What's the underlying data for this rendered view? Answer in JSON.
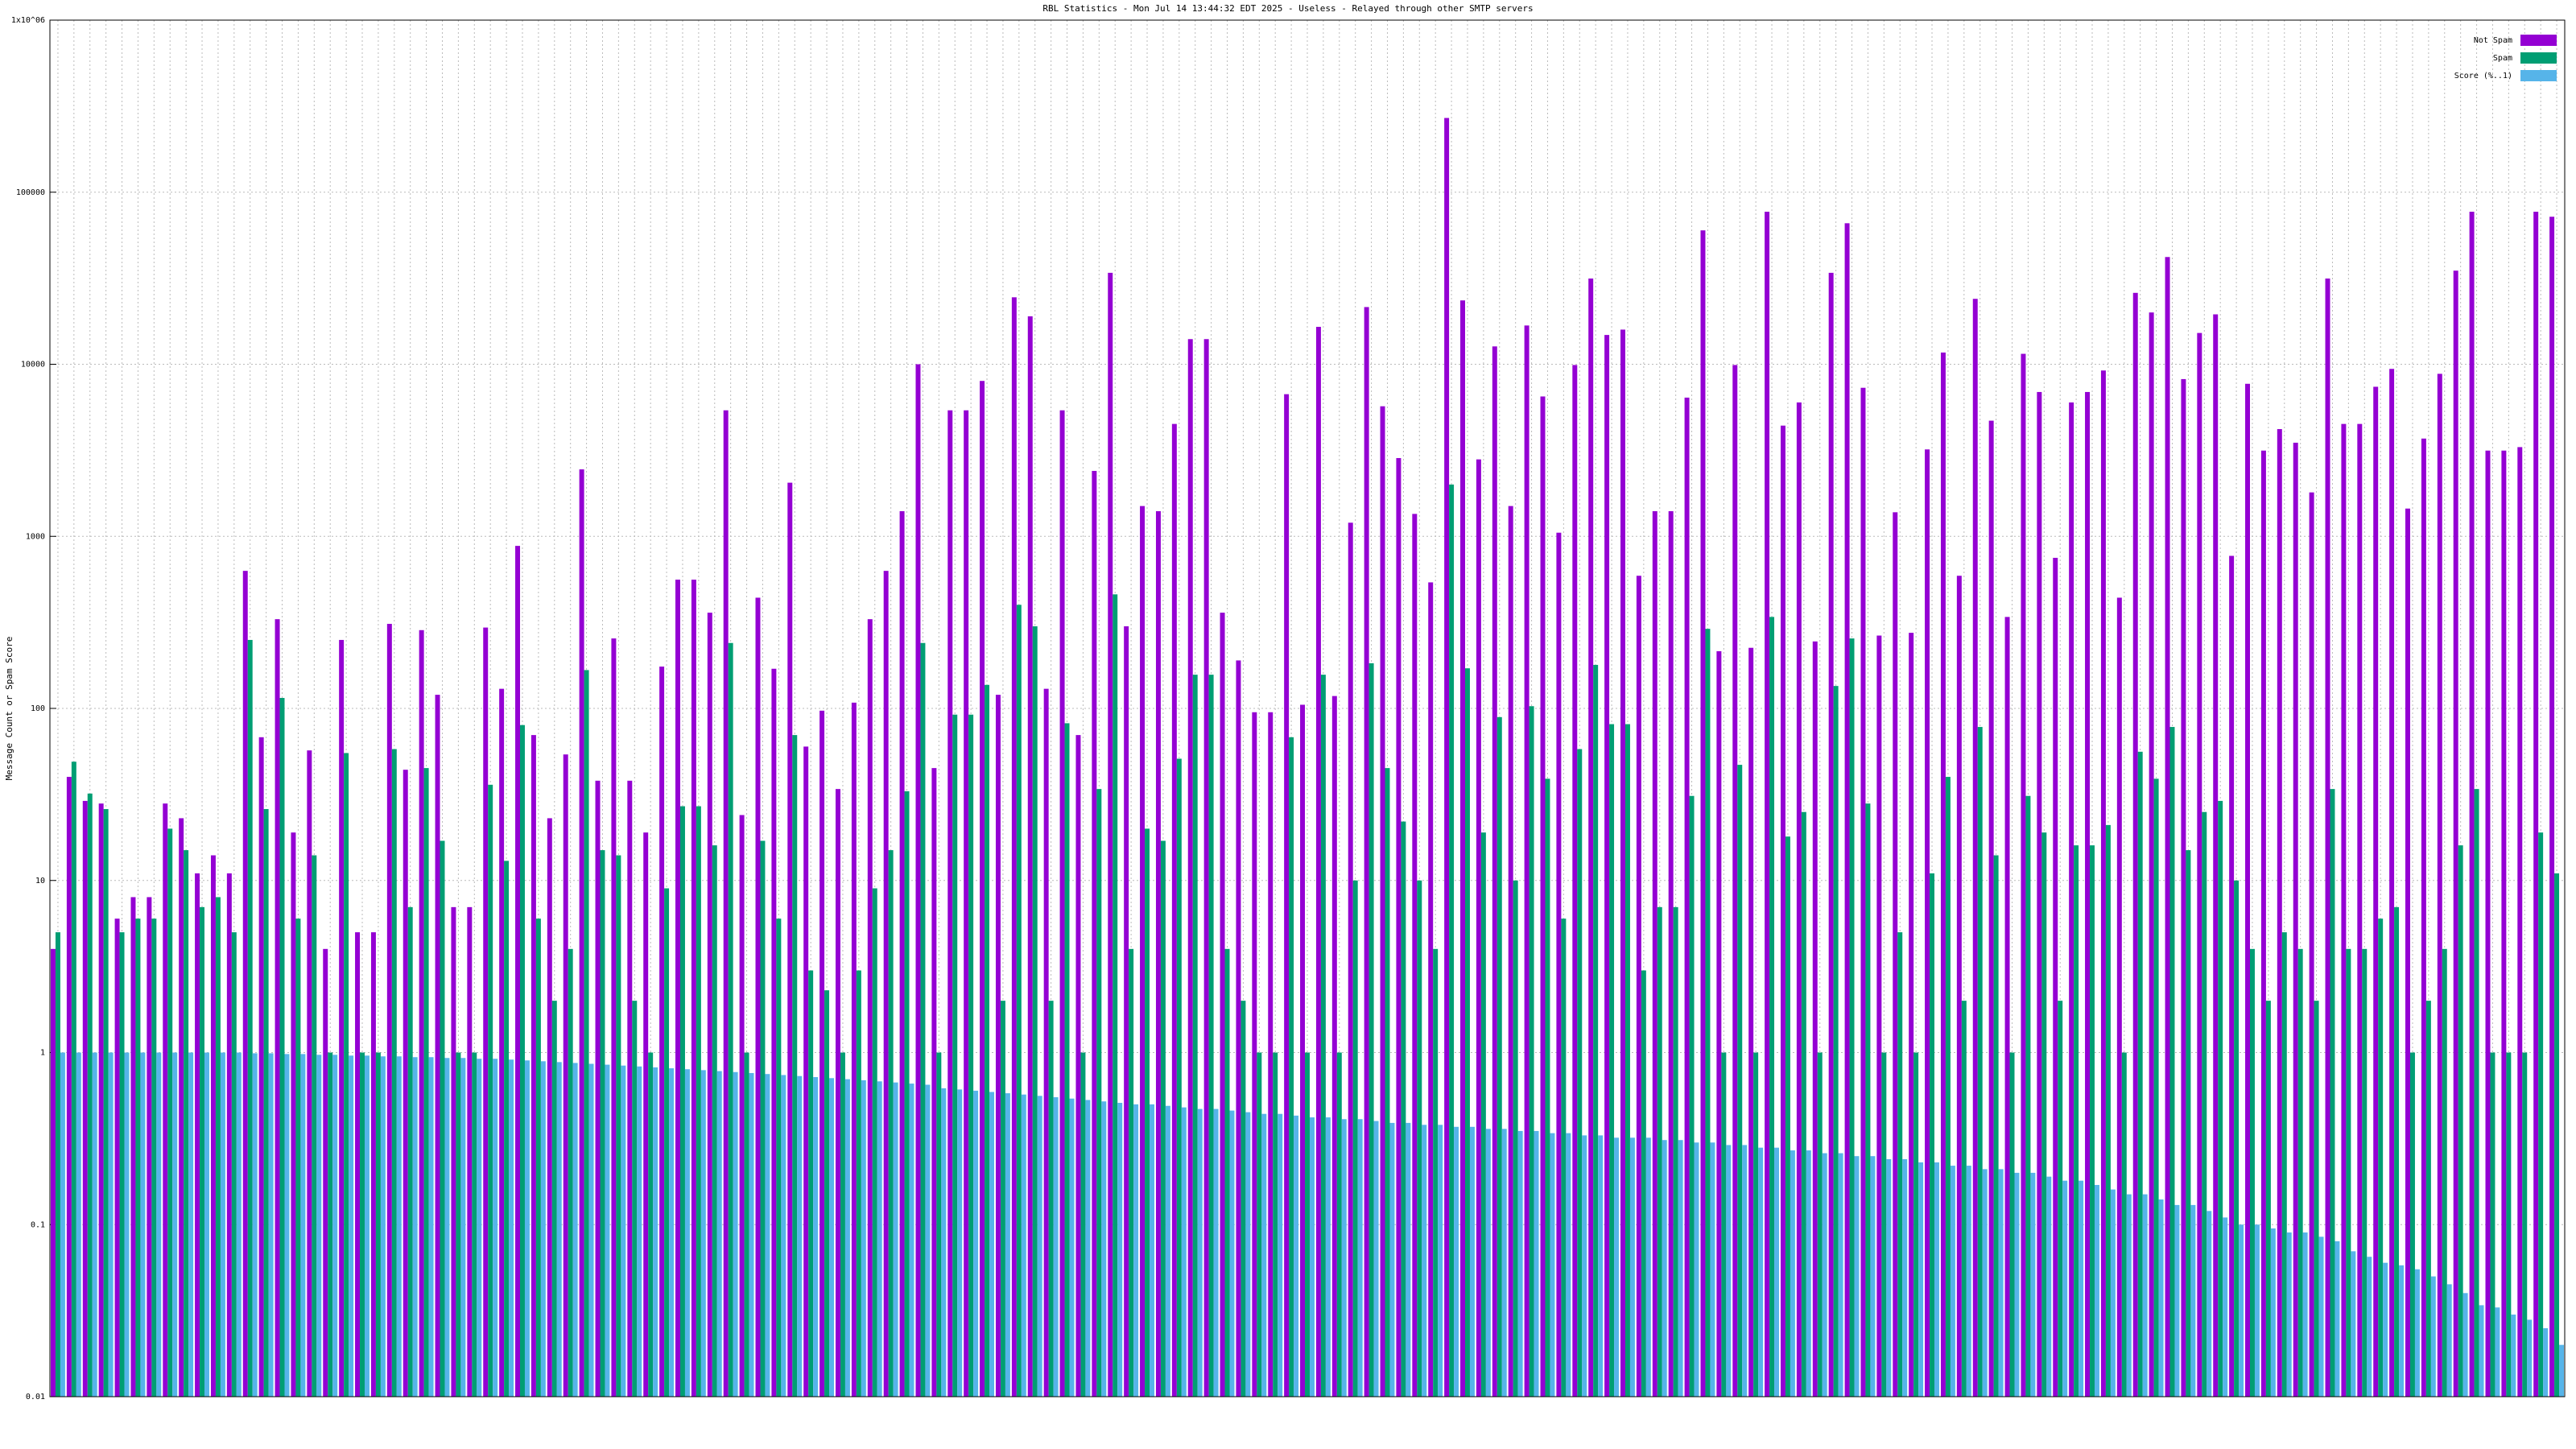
{
  "chart_data": {
    "type": "bar",
    "title": "RBL Statistics - Mon Jul 14 13:44:32 EDT 2025 - Useless - Relayed through other SMTP servers",
    "y_label": "Message Count or Spam Score",
    "log_scale": true,
    "grid": true,
    "legend": "top right",
    "categories": [
      null,
      null,
      null,
      null,
      null,
      null,
      null,
      null,
      null,
      null,
      null,
      null,
      null,
      null,
      null,
      null,
      null,
      null,
      null,
      null,
      null,
      null,
      null,
      null,
      null,
      null,
      null,
      null,
      null,
      null,
      null,
      null,
      null,
      null,
      null,
      null,
      null,
      null,
      null,
      null,
      null,
      null,
      null,
      null,
      null,
      null,
      null,
      null,
      null,
      null,
      null,
      null,
      null,
      null,
      null,
      null,
      null,
      null,
      null,
      null,
      null,
      null,
      null,
      null,
      null,
      null,
      null,
      null,
      null,
      null,
      null,
      null,
      null,
      null,
      null,
      null,
      null,
      null,
      null,
      null,
      null,
      null,
      null,
      null,
      null,
      null,
      null,
      null,
      null,
      null,
      null,
      null,
      null,
      null,
      null,
      null,
      null,
      null,
      null,
      null,
      null,
      null,
      null,
      null,
      null,
      null,
      null,
      null,
      null,
      null,
      null,
      null,
      null,
      null,
      null,
      null,
      null,
      null,
      null,
      null,
      null,
      null,
      null,
      null,
      null,
      null,
      null,
      null,
      null,
      null,
      null,
      null,
      null,
      null,
      null,
      null,
      null,
      null,
      null,
      null,
      null,
      null,
      null,
      null,
      null,
      null,
      null,
      null,
      null,
      null,
      null,
      null,
      null,
      null,
      null,
      null,
      null
    ],
    "series": [
      {
        "name": "Not Spam",
        "color": "#9400d3",
        "values": [
          4,
          40,
          29,
          28,
          6,
          8,
          8,
          28,
          23,
          11,
          14,
          11,
          630,
          68,
          330,
          19,
          57,
          4,
          250,
          5,
          5,
          310,
          44,
          285,
          120,
          7,
          7,
          295,
          130,
          880,
          70,
          23,
          54,
          2450,
          38,
          255,
          38,
          19,
          175,
          560,
          560,
          360,
          5400,
          24,
          440,
          170,
          2050,
          60,
          97,
          34,
          108,
          330,
          630,
          1400,
          10000,
          45,
          5400,
          5400,
          8000,
          120,
          24500,
          19000,
          130,
          5400,
          70,
          2400,
          34000,
          300,
          1500,
          1400,
          4500,
          14000,
          14000,
          360,
          190,
          95,
          95,
          6700,
          105,
          16500,
          118,
          1200,
          21500,
          5700,
          2850,
          1350,
          540,
          270000,
          23500,
          2800,
          12700,
          1500,
          16800,
          6500,
          1050,
          9900,
          31500,
          14800,
          15900,
          590,
          1400,
          1400,
          6400,
          60000,
          215,
          9900,
          225,
          77000,
          4400,
          6000,
          245,
          34000,
          66000,
          7300,
          265,
          1380,
          275,
          3200,
          11700,
          590,
          24000,
          4700,
          340,
          11500,
          6900,
          750,
          6000,
          6900,
          9200,
          440,
          26000,
          20000,
          42000,
          8200,
          15200,
          19500,
          770,
          7700,
          3150,
          4200,
          3500,
          1800,
          31500,
          4500,
          4500,
          7400,
          9400,
          1450,
          3700,
          8800,
          35000,
          77000,
          3150,
          3150,
          3300,
          77000,
          72000
        ]
      },
      {
        "name": "Spam",
        "color": "#009e73",
        "values": [
          5,
          49,
          32,
          26,
          5,
          6,
          6,
          20,
          15,
          7,
          8,
          5,
          250,
          26,
          115,
          6,
          14,
          1,
          55,
          1,
          1,
          58,
          7,
          45,
          17,
          1,
          1,
          36,
          13,
          80,
          6,
          2,
          4,
          167,
          15,
          14,
          2,
          1,
          9,
          27,
          27,
          16,
          240,
          1,
          17,
          6,
          70,
          3,
          2.3,
          1,
          3,
          9,
          15,
          33,
          240,
          1,
          92,
          92,
          137,
          2,
          400,
          300,
          2,
          82,
          1,
          34,
          460,
          4,
          20,
          17,
          51,
          157,
          157,
          4,
          2,
          1,
          1,
          68,
          1,
          157,
          1,
          10,
          183,
          45,
          22,
          10,
          4,
          2000,
          171,
          19,
          89,
          10,
          103,
          39,
          6,
          58,
          179,
          81,
          81,
          3,
          7,
          7,
          31,
          290,
          1,
          47,
          1,
          340,
          18,
          25,
          1,
          135,
          255,
          28,
          1,
          5,
          1,
          11,
          40,
          2,
          78,
          14,
          1,
          31,
          19,
          2,
          16,
          16,
          21,
          1,
          56,
          39,
          78,
          15,
          25,
          29,
          10,
          4,
          2,
          5,
          4,
          2,
          34,
          4,
          4,
          6,
          7,
          1,
          2,
          4,
          16,
          34,
          1,
          1,
          1,
          19,
          11
        ]
      },
      {
        "name": "Score (%..1)",
        "color": "#56b4e9",
        "values": [
          1,
          1,
          1,
          1,
          1,
          1,
          1,
          1,
          1,
          1,
          1,
          1,
          0.99,
          0.99,
          0.98,
          0.98,
          0.97,
          0.97,
          0.96,
          0.96,
          0.95,
          0.95,
          0.94,
          0.94,
          0.93,
          0.93,
          0.92,
          0.92,
          0.91,
          0.9,
          0.89,
          0.88,
          0.87,
          0.86,
          0.85,
          0.84,
          0.83,
          0.82,
          0.81,
          0.8,
          0.79,
          0.78,
          0.77,
          0.76,
          0.75,
          0.74,
          0.73,
          0.72,
          0.71,
          0.7,
          0.69,
          0.68,
          0.67,
          0.66,
          0.65,
          0.62,
          0.61,
          0.6,
          0.59,
          0.58,
          0.57,
          0.56,
          0.55,
          0.54,
          0.53,
          0.52,
          0.51,
          0.5,
          0.5,
          0.49,
          0.48,
          0.47,
          0.47,
          0.46,
          0.45,
          0.44,
          0.44,
          0.43,
          0.42,
          0.42,
          0.41,
          0.41,
          0.4,
          0.39,
          0.39,
          0.38,
          0.38,
          0.37,
          0.37,
          0.36,
          0.36,
          0.35,
          0.35,
          0.34,
          0.34,
          0.33,
          0.33,
          0.32,
          0.32,
          0.32,
          0.31,
          0.31,
          0.3,
          0.3,
          0.29,
          0.29,
          0.28,
          0.28,
          0.27,
          0.27,
          0.26,
          0.26,
          0.25,
          0.25,
          0.24,
          0.24,
          0.23,
          0.23,
          0.22,
          0.22,
          0.21,
          0.21,
          0.2,
          0.2,
          0.19,
          0.18,
          0.18,
          0.17,
          0.16,
          0.15,
          0.15,
          0.14,
          0.13,
          0.13,
          0.12,
          0.11,
          0.1,
          0.1,
          0.095,
          0.09,
          0.09,
          0.085,
          0.08,
          0.07,
          0.065,
          0.06,
          0.058,
          0.055,
          0.05,
          0.045,
          0.04,
          0.034,
          0.033,
          0.03,
          0.028,
          0.025,
          0.02
        ]
      }
    ],
    "ylim": [
      0.01,
      1000000
    ],
    "yticks": [
      0.01,
      0.1,
      1,
      10,
      100,
      1000,
      10000,
      100000,
      {
        "value": 1000000,
        "label": "1x10^06"
      }
    ]
  }
}
